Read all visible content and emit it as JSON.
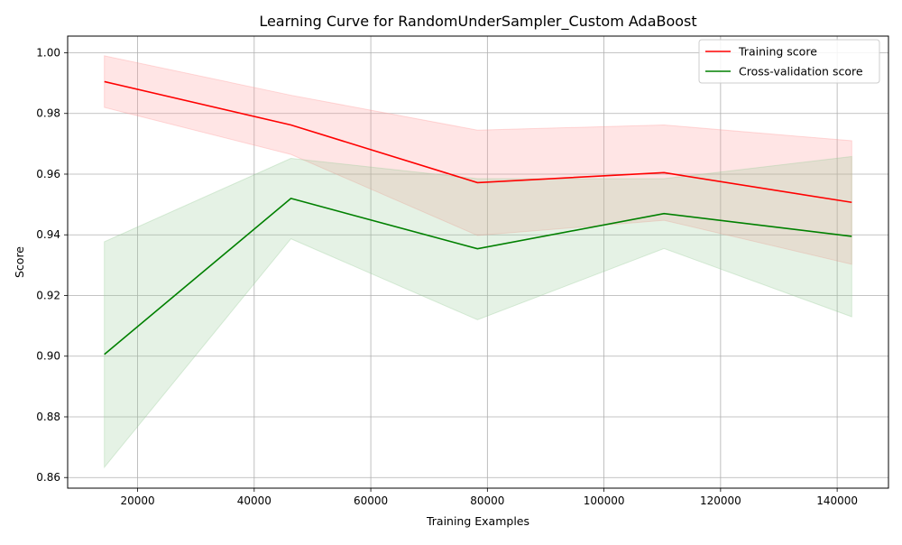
{
  "chart_data": {
    "type": "line",
    "title": "Learning Curve for RandomUnderSampler_Custom AdaBoost",
    "xlabel": "Training Examples",
    "ylabel": "Score",
    "xlim": [
      8000,
      148800
    ],
    "ylim": [
      0.8565,
      1.0055
    ],
    "x_ticks": [
      20000,
      40000,
      60000,
      80000,
      100000,
      120000,
      140000
    ],
    "x_tick_labels": [
      "20000",
      "40000",
      "60000",
      "80000",
      "100000",
      "120000",
      "140000"
    ],
    "y_ticks": [
      0.86,
      0.88,
      0.9,
      0.92,
      0.94,
      0.96,
      0.98,
      1.0
    ],
    "y_tick_labels": [
      "0.86",
      "0.88",
      "0.90",
      "0.92",
      "0.94",
      "0.96",
      "0.98",
      "1.00"
    ],
    "grid": true,
    "legend_position": "top-right",
    "x": [
      14300,
      46300,
      78300,
      110300,
      142500
    ],
    "series": [
      {
        "name": "Training score",
        "color": "#ff0000",
        "band_color": "#ff9999",
        "values": [
          0.9905,
          0.9762,
          0.9572,
          0.9605,
          0.9507
        ],
        "band_upper": [
          0.999,
          0.986,
          0.9745,
          0.9762,
          0.971
        ],
        "band_lower": [
          0.982,
          0.9665,
          0.9398,
          0.9448,
          0.9303
        ]
      },
      {
        "name": "Cross-validation score",
        "color": "#008000",
        "band_color": "#99cc99",
        "values": [
          0.9006,
          0.952,
          0.9354,
          0.947,
          0.9395
        ],
        "band_upper": [
          0.9377,
          0.9652,
          0.9585,
          0.9585,
          0.9658
        ],
        "band_lower": [
          0.8634,
          0.9387,
          0.912,
          0.9355,
          0.913
        ]
      }
    ]
  }
}
